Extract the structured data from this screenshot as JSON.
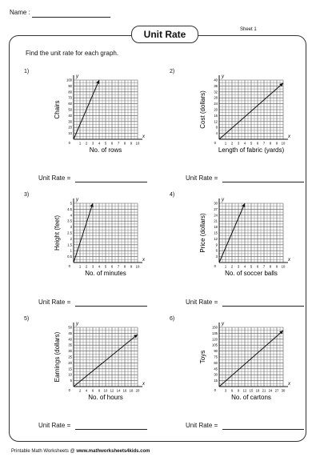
{
  "header": {
    "name_label": "Name :",
    "title": "Unit Rate",
    "sheet": "Sheet 1"
  },
  "instructions": "Find the unit rate for each graph.",
  "unit_rate_label": "Unit Rate =",
  "footer": {
    "text": "Printable Math Worksheets @ ",
    "site": "www.mathworksheets4kids.com"
  },
  "problems": [
    {
      "num": "1)",
      "xlabel": "No. of rows",
      "ylabel": "Chairs",
      "x_ticks": [
        "1",
        "2",
        "3",
        "4",
        "5",
        "6",
        "7",
        "8",
        "9",
        "10"
      ],
      "y_ticks": [
        "10",
        "20",
        "30",
        "40",
        "50",
        "60",
        "70",
        "80",
        "90",
        "100"
      ],
      "xmax": 10,
      "ymax": 100,
      "line_end": [
        4,
        100
      ]
    },
    {
      "num": "2)",
      "xlabel": "Length of fabric (yards)",
      "ylabel": "Cost (dollars)",
      "x_ticks": [
        "1",
        "2",
        "3",
        "4",
        "5",
        "6",
        "7",
        "8",
        "9",
        "10"
      ],
      "y_ticks": [
        "4",
        "8",
        "12",
        "16",
        "20",
        "24",
        "28",
        "32",
        "36",
        "40"
      ],
      "xmax": 10,
      "ymax": 40,
      "line_end": [
        10,
        38
      ]
    },
    {
      "num": "3)",
      "xlabel": "No. of minutes",
      "ylabel": "Height (feet)",
      "x_ticks": [
        "1",
        "2",
        "3",
        "4",
        "5",
        "6",
        "7",
        "8",
        "9",
        "10"
      ],
      "y_ticks": [
        "0.5",
        "1",
        "1.5",
        "2",
        "2.5",
        "3",
        "3.5",
        "4",
        "4.5",
        "5"
      ],
      "xmax": 10,
      "ymax": 5,
      "line_end": [
        3,
        5
      ]
    },
    {
      "num": "4)",
      "xlabel": "No. of soccer balls",
      "ylabel": "Price (dollars)",
      "x_ticks": [
        "1",
        "2",
        "3",
        "4",
        "5",
        "6",
        "7",
        "8",
        "9",
        "10"
      ],
      "y_ticks": [
        "3",
        "6",
        "9",
        "12",
        "15",
        "18",
        "21",
        "24",
        "27",
        "30"
      ],
      "xmax": 10,
      "ymax": 30,
      "line_end": [
        4,
        30
      ]
    },
    {
      "num": "5)",
      "xlabel": "No. of hours",
      "ylabel": "Earnings (dollars)",
      "x_ticks": [
        "2",
        "4",
        "6",
        "8",
        "10",
        "12",
        "14",
        "16",
        "18",
        "20"
      ],
      "y_ticks": [
        "5",
        "10",
        "15",
        "20",
        "25",
        "30",
        "35",
        "40",
        "45",
        "50"
      ],
      "xmax": 20,
      "ymax": 50,
      "line_end": [
        20,
        44
      ]
    },
    {
      "num": "6)",
      "xlabel": "No. of cartons",
      "ylabel": "Toys",
      "x_ticks": [
        "3",
        "6",
        "9",
        "12",
        "15",
        "18",
        "21",
        "24",
        "27",
        "30"
      ],
      "y_ticks": [
        "15",
        "30",
        "45",
        "60",
        "75",
        "90",
        "105",
        "120",
        "135",
        "150"
      ],
      "xmax": 30,
      "ymax": 150,
      "line_end": [
        30,
        142
      ]
    }
  ]
}
